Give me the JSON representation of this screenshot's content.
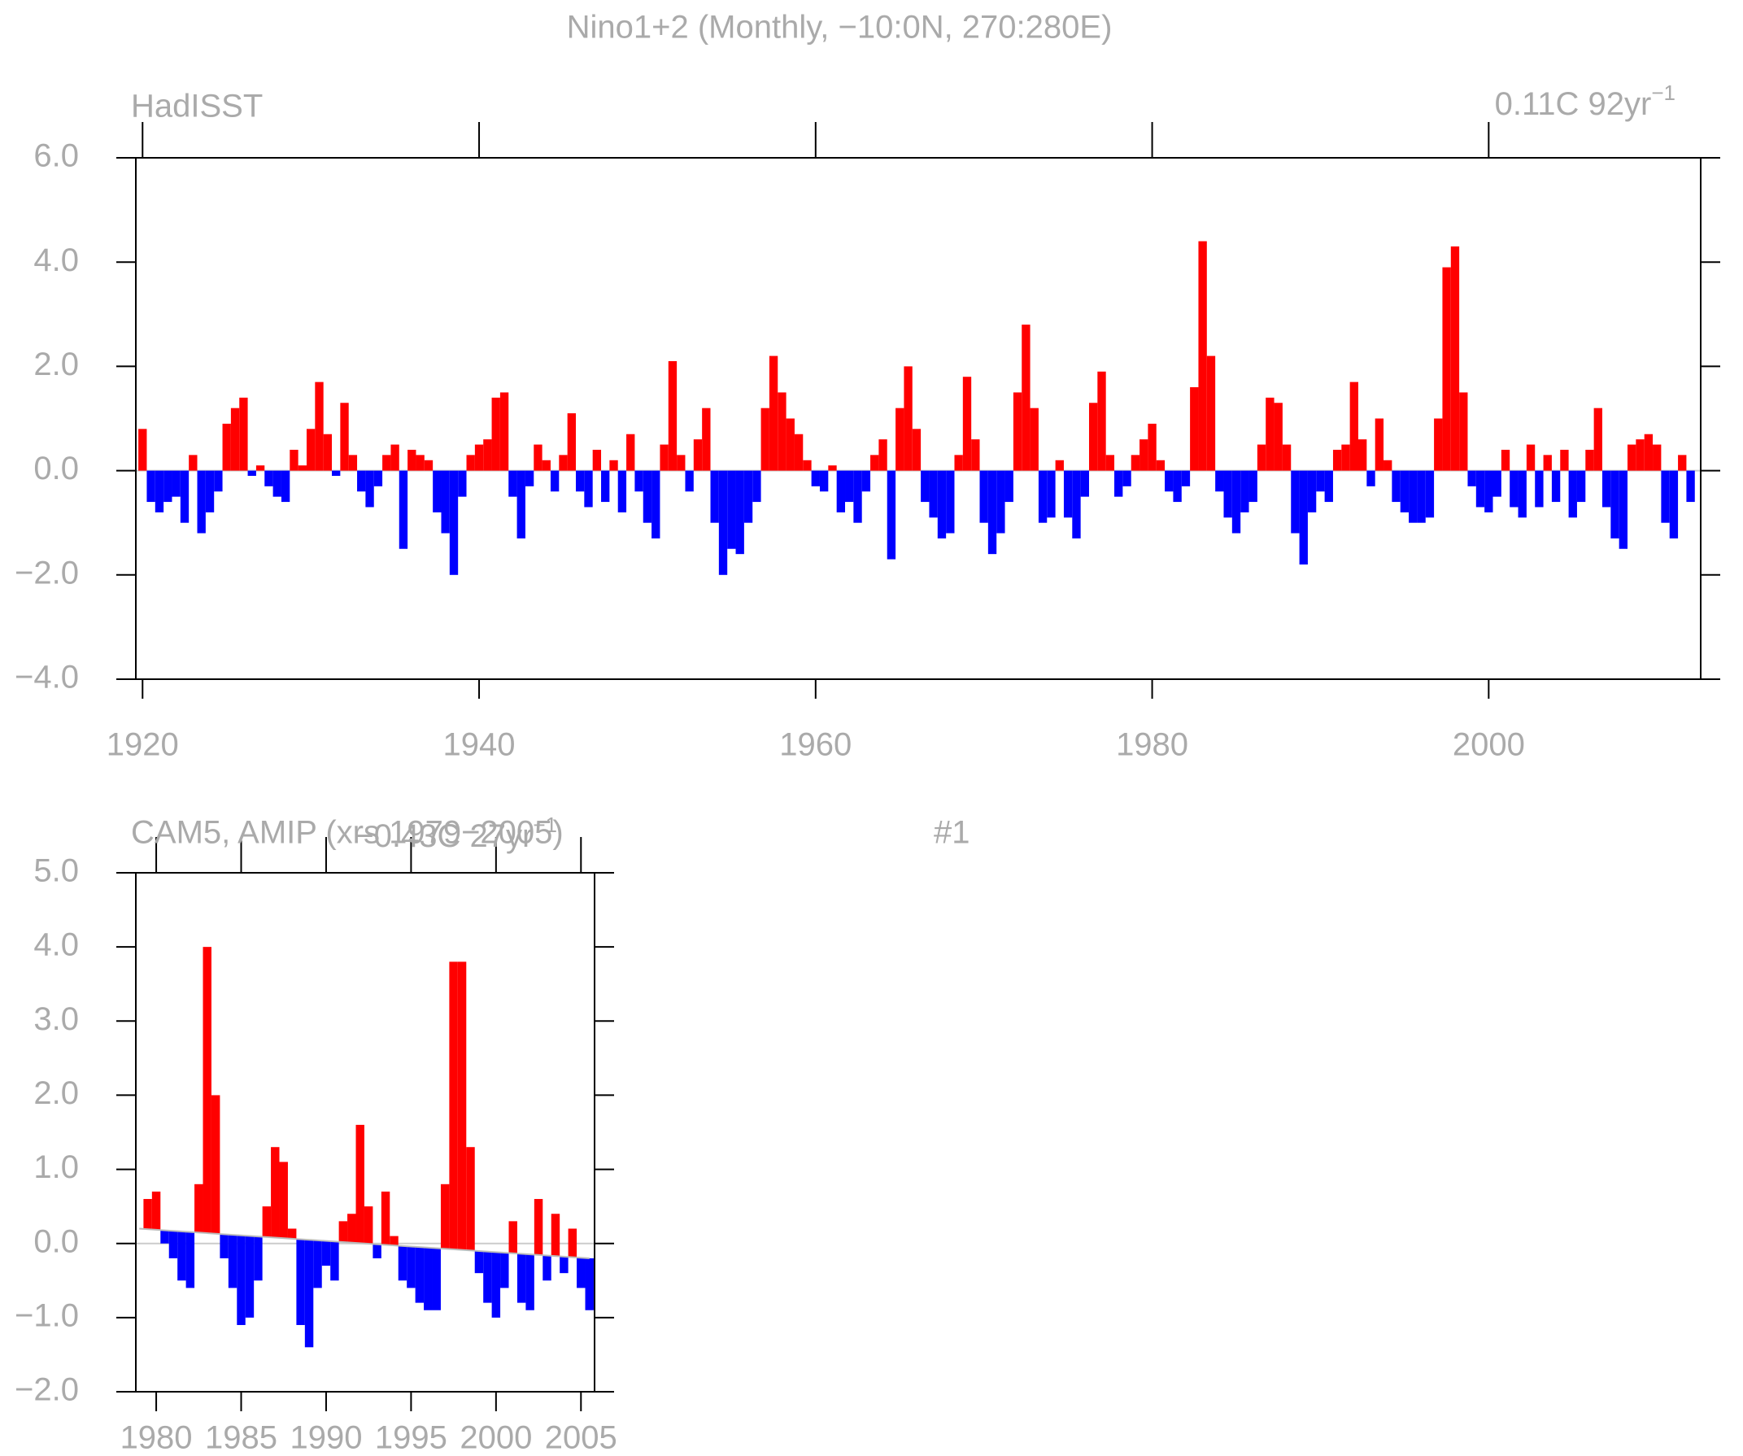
{
  "title": "Nino1+2 (Monthly, −10:0N, 270:280E)",
  "chart_data": [
    {
      "type": "bar",
      "subtitle": "HadISST",
      "trend_label": "0.11C 92yr",
      "trend_label_exp": "−1",
      "xlim": [
        1919.6,
        2012.6
      ],
      "xticks": [
        1920,
        1940,
        1960,
        1980,
        2000
      ],
      "ylim": [
        -4,
        6
      ],
      "yticks": [
        {
          "value": 6,
          "label": "6.0"
        },
        {
          "value": 4,
          "label": "4.0"
        },
        {
          "value": 2,
          "label": "2.0"
        },
        {
          "value": 0,
          "label": "0.0"
        },
        {
          "value": -2,
          "label": "−2.0"
        },
        {
          "value": -4,
          "label": "−4.0"
        }
      ],
      "positive_color": "#ff0000",
      "negative_color": "#0000ff",
      "x": [
        1920,
        1920.5,
        1921,
        1921.5,
        1922,
        1922.5,
        1923,
        1923.5,
        1924,
        1924.5,
        1925,
        1925.5,
        1926,
        1926.5,
        1927,
        1927.5,
        1928,
        1928.5,
        1929,
        1929.5,
        1930,
        1930.5,
        1931,
        1931.5,
        1932,
        1932.5,
        1933,
        1933.5,
        1934,
        1934.5,
        1935,
        1935.5,
        1936,
        1936.5,
        1937,
        1937.5,
        1938,
        1938.5,
        1939,
        1939.5,
        1940,
        1940.5,
        1941,
        1941.5,
        1942,
        1942.5,
        1943,
        1943.5,
        1944,
        1944.5,
        1945,
        1945.5,
        1946,
        1946.5,
        1947,
        1947.5,
        1948,
        1948.5,
        1949,
        1949.5,
        1950,
        1950.5,
        1951,
        1951.5,
        1952,
        1952.5,
        1953,
        1953.5,
        1954,
        1954.5,
        1955,
        1955.5,
        1956,
        1956.5,
        1957,
        1957.5,
        1958,
        1958.5,
        1959,
        1959.5,
        1960,
        1960.5,
        1961,
        1961.5,
        1962,
        1962.5,
        1963,
        1963.5,
        1964,
        1964.5,
        1965,
        1965.5,
        1966,
        1966.5,
        1967,
        1967.5,
        1968,
        1968.5,
        1969,
        1969.5,
        1970,
        1970.5,
        1971,
        1971.5,
        1972,
        1972.5,
        1973,
        1973.5,
        1974,
        1974.5,
        1975,
        1975.5,
        1976,
        1976.5,
        1977,
        1977.5,
        1978,
        1978.5,
        1979,
        1979.5,
        1980,
        1980.5,
        1981,
        1981.5,
        1982,
        1982.5,
        1983,
        1983.5,
        1984,
        1984.5,
        1985,
        1985.5,
        1986,
        1986.5,
        1987,
        1987.5,
        1988,
        1988.5,
        1989,
        1989.5,
        1990,
        1990.5,
        1991,
        1991.5,
        1992,
        1992.5,
        1993,
        1993.5,
        1994,
        1994.5,
        1995,
        1995.5,
        1996,
        1996.5,
        1997,
        1997.5,
        1998,
        1998.5,
        1999,
        1999.5,
        2000,
        2000.5,
        2001,
        2001.5,
        2002,
        2002.5,
        2003,
        2003.5,
        2004,
        2004.5,
        2005,
        2005.5,
        2006,
        2006.5,
        2007,
        2007.5,
        2008,
        2008.5,
        2009,
        2009.5,
        2010,
        2010.5,
        2011,
        2011.5,
        2012
      ],
      "values": [
        0.8,
        -0.6,
        -0.8,
        -0.6,
        -0.5,
        -1.0,
        0.3,
        -1.2,
        -0.8,
        -0.4,
        0.9,
        1.2,
        1.4,
        -0.1,
        0.1,
        -0.3,
        -0.5,
        -0.6,
        0.4,
        0.1,
        0.8,
        1.7,
        0.7,
        -0.1,
        1.3,
        0.3,
        -0.4,
        -0.7,
        -0.3,
        0.3,
        0.5,
        -1.5,
        0.4,
        0.3,
        0.2,
        -0.8,
        -1.2,
        -2.0,
        -0.5,
        0.3,
        0.5,
        0.6,
        1.4,
        1.5,
        -0.5,
        -1.3,
        -0.3,
        0.5,
        0.2,
        -0.4,
        0.3,
        1.1,
        -0.4,
        -0.7,
        0.4,
        -0.6,
        0.2,
        -0.8,
        0.7,
        -0.4,
        -1.0,
        -1.3,
        0.5,
        2.1,
        0.3,
        -0.4,
        0.6,
        1.2,
        -1.0,
        -2.0,
        -1.5,
        -1.6,
        -1.0,
        -0.6,
        1.2,
        2.2,
        1.5,
        1.0,
        0.7,
        0.2,
        -0.3,
        -0.4,
        0.1,
        -0.8,
        -0.6,
        -1.0,
        -0.4,
        0.3,
        0.6,
        -1.7,
        1.2,
        2.0,
        0.8,
        -0.6,
        -0.9,
        -1.3,
        -1.2,
        0.3,
        1.8,
        0.6,
        -1.0,
        -1.6,
        -1.2,
        -0.6,
        1.5,
        2.8,
        1.2,
        -1.0,
        -0.9,
        0.2,
        -0.9,
        -1.3,
        -0.5,
        1.3,
        1.9,
        0.3,
        -0.5,
        -0.3,
        0.3,
        0.6,
        0.9,
        0.2,
        -0.4,
        -0.6,
        -0.3,
        1.6,
        4.4,
        2.2,
        -0.4,
        -0.9,
        -1.2,
        -0.8,
        -0.6,
        0.5,
        1.4,
        1.3,
        0.5,
        -1.2,
        -1.8,
        -0.8,
        -0.4,
        -0.6,
        0.4,
        0.5,
        1.7,
        0.6,
        -0.3,
        1.0,
        0.2,
        -0.6,
        -0.8,
        -1.0,
        -1.0,
        -0.9,
        1.0,
        3.9,
        4.3,
        1.5,
        -0.3,
        -0.7,
        -0.8,
        -0.5,
        0.4,
        -0.7,
        -0.9,
        0.5,
        -0.7,
        0.3,
        -0.6,
        0.4,
        -0.9,
        -0.6,
        0.4,
        1.2,
        -0.7,
        -1.3,
        -1.5,
        0.5,
        0.6,
        0.7,
        0.5,
        -1.0,
        -1.3,
        0.3,
        -0.6
      ]
    },
    {
      "type": "bar",
      "subtitle": "CAM5, AMIP (xrs 1979−2005)",
      "member": "#1",
      "trend_label": "−0.43C 27yr",
      "trend_label_exp": "−1",
      "xlim": [
        1978.8,
        2005.8
      ],
      "xticks": [
        1980,
        1985,
        1990,
        1995,
        2000,
        2005
      ],
      "ylim": [
        -2,
        5
      ],
      "yticks": [
        {
          "value": 5,
          "label": "5.0"
        },
        {
          "value": 4,
          "label": "4.0"
        },
        {
          "value": 3,
          "label": "3.0"
        },
        {
          "value": 2,
          "label": "2.0"
        },
        {
          "value": 1,
          "label": "1.0"
        },
        {
          "value": 0,
          "label": "0.0"
        },
        {
          "value": -1,
          "label": "−1.0"
        },
        {
          "value": -2,
          "label": "−2.0"
        }
      ],
      "positive_color": "#ff0000",
      "negative_color": "#0000ff",
      "trend_line": {
        "x": [
          1979,
          2005.5
        ],
        "y": [
          0.2,
          -0.2
        ]
      },
      "x": [
        1979,
        1979.5,
        1980,
        1980.5,
        1981,
        1981.5,
        1982,
        1982.5,
        1983,
        1983.5,
        1984,
        1984.5,
        1985,
        1985.5,
        1986,
        1986.5,
        1987,
        1987.5,
        1988,
        1988.5,
        1989,
        1989.5,
        1990,
        1990.5,
        1991,
        1991.5,
        1992,
        1992.5,
        1993,
        1993.5,
        1994,
        1994.5,
        1995,
        1995.5,
        1996,
        1996.5,
        1997,
        1997.5,
        1998,
        1998.5,
        1999,
        1999.5,
        2000,
        2000.5,
        2001,
        2001.5,
        2002,
        2002.5,
        2003,
        2003.5,
        2004,
        2004.5,
        2005,
        2005.5
      ],
      "values": [
        0.2,
        0.6,
        0.7,
        0.0,
        -0.2,
        -0.5,
        -0.6,
        0.8,
        4.0,
        2.0,
        -0.2,
        -0.6,
        -1.1,
        -1.0,
        -0.5,
        0.5,
        1.3,
        1.1,
        0.2,
        -1.1,
        -1.4,
        -0.6,
        -0.3,
        -0.5,
        0.3,
        0.4,
        1.6,
        0.5,
        -0.2,
        0.7,
        0.1,
        -0.5,
        -0.6,
        -0.8,
        -0.9,
        -0.9,
        0.8,
        3.8,
        3.8,
        1.3,
        -0.4,
        -0.8,
        -1.0,
        -0.6,
        0.3,
        -0.8,
        -0.9,
        0.6,
        -0.5,
        0.4,
        -0.4,
        0.2,
        -0.6,
        -0.9
      ]
    }
  ]
}
